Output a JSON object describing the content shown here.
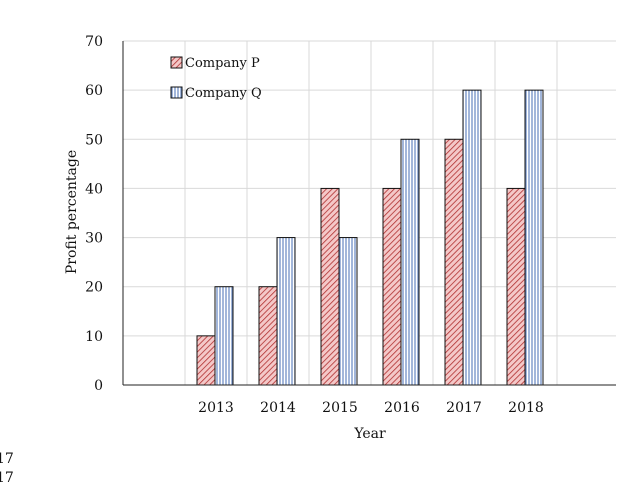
{
  "chart_data": {
    "type": "bar",
    "categories": [
      "2013",
      "2014",
      "2015",
      "2016",
      "2017",
      "2018"
    ],
    "series": [
      {
        "name": "Company P",
        "values": [
          10,
          20,
          40,
          40,
          50,
          40
        ],
        "color": "#e8a0a0",
        "pattern": "diagonal-hatch"
      },
      {
        "name": "Company Q",
        "values": [
          20,
          30,
          30,
          50,
          60,
          60
        ],
        "color": "#b8cce8",
        "pattern": "vertical-lines"
      }
    ],
    "title": "",
    "xlabel": "Year",
    "ylabel": "Profit percentage",
    "ylim": [
      0,
      70
    ],
    "yticks": [
      0,
      10,
      20,
      30,
      40,
      50,
      60,
      70
    ],
    "grid": true,
    "legend": "top-left"
  },
  "stray_text": [
    "17",
    "17"
  ]
}
